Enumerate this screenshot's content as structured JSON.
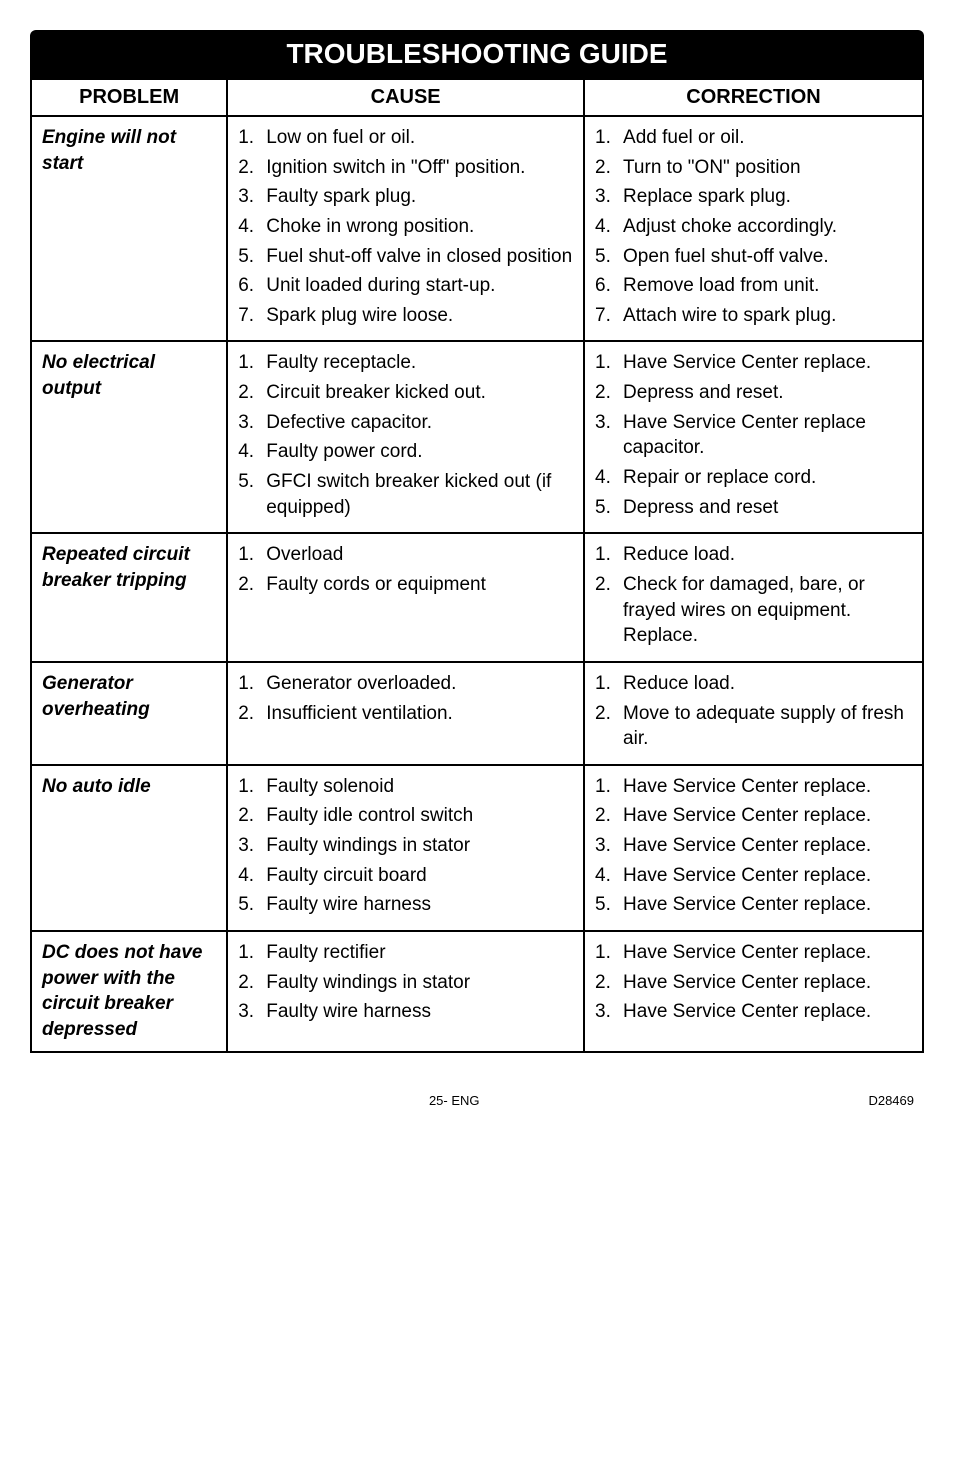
{
  "title": "TROUBLESHOOTING GUIDE",
  "headers": {
    "problem": "PROBLEM",
    "cause": "CAUSE",
    "correction": "CORRECTION"
  },
  "col_widths": {
    "problem": "22%",
    "cause": "40%",
    "correction": "38%"
  },
  "rows": [
    {
      "problem": "Engine will not start",
      "causes": [
        {
          "n": "1.",
          "t": "Low on fuel or oil."
        },
        {
          "n": "2.",
          "t": "Ignition switch in \"Off\" position."
        },
        {
          "n": "3.",
          "t": "Faulty spark plug."
        },
        {
          "n": "4.",
          "t": "Choke in wrong position."
        },
        {
          "n": "5.",
          "t": "Fuel shut-off valve in closed position"
        },
        {
          "n": "6.",
          "t": "Unit loaded during start-up."
        },
        {
          "n": "7.",
          "t": "Spark plug wire loose."
        }
      ],
      "corrections": [
        {
          "n": "1.",
          "t": "Add fuel or oil."
        },
        {
          "n": "2.",
          "t": "Turn to \"ON\" position"
        },
        {
          "n": "3.",
          "t": "Replace spark plug."
        },
        {
          "n": "4.",
          "t": "Adjust choke accordingly."
        },
        {
          "n": "5.",
          "t": "Open fuel shut-off valve."
        },
        {
          "n": "6.",
          "t": "Remove load from unit."
        },
        {
          "n": "7.",
          "t": "Attach wire to spark plug."
        }
      ]
    },
    {
      "problem": "No electrical output",
      "causes": [
        {
          "n": "1.",
          "t": "Faulty receptacle."
        },
        {
          "n": "2.",
          "t": "Circuit breaker kicked out."
        },
        {
          "n": "3.",
          "t": "Defective capacitor."
        },
        {
          "n": "4.",
          "t": "Faulty power cord."
        },
        {
          "n": "5.",
          "t": "GFCI switch breaker kicked out (if equipped)"
        }
      ],
      "corrections": [
        {
          "n": "1.",
          "t": "Have Service Center replace."
        },
        {
          "n": "2.",
          "t": "Depress and reset."
        },
        {
          "n": "3.",
          "t": "Have Service Center replace capacitor."
        },
        {
          "n": "4.",
          "t": "Repair or replace cord."
        },
        {
          "n": "5.",
          "t": "Depress and reset"
        }
      ]
    },
    {
      "problem": "Repeated circuit breaker tripping",
      "causes": [
        {
          "n": "1.",
          "t": "Overload"
        },
        {
          "n": "2.",
          "t": "Faulty cords or equipment"
        }
      ],
      "corrections": [
        {
          "n": "1.",
          "t": "Reduce load."
        },
        {
          "n": "2.",
          "t": "Check for damaged, bare, or frayed wires on equipment. Replace."
        }
      ]
    },
    {
      "problem": "Generator overheating",
      "causes": [
        {
          "n": "1.",
          "t": "Generator overloaded."
        },
        {
          "n": "2.",
          "t": "Insufficient ventilation."
        }
      ],
      "corrections": [
        {
          "n": "1.",
          "t": "Reduce load."
        },
        {
          "n": "2.",
          "t": "Move to adequate supply of fresh air."
        }
      ]
    },
    {
      "problem": "No auto idle",
      "causes": [
        {
          "n": "1.",
          "t": "Faulty solenoid"
        },
        {
          "n": "2.",
          "t": "Faulty idle control switch"
        },
        {
          "n": "3.",
          "t": "Faulty windings in stator"
        },
        {
          "n": "4.",
          "t": "Faulty circuit board"
        },
        {
          "n": "5.",
          "t": "Faulty wire harness"
        }
      ],
      "corrections": [
        {
          "n": "1.",
          "t": "Have Service Center replace."
        },
        {
          "n": "2.",
          "t": "Have Service Center replace."
        },
        {
          "n": "3.",
          "t": "Have Service Center replace."
        },
        {
          "n": "4.",
          "t": "Have Service Center replace."
        },
        {
          "n": "5.",
          "t": "Have Service Center replace."
        }
      ]
    },
    {
      "problem": "DC does not have power with the circuit breaker depressed",
      "causes": [
        {
          "n": "1.",
          "t": "Faulty rectifier"
        },
        {
          "n": "2.",
          "t": "Faulty windings in stator"
        },
        {
          "n": "3.",
          "t": "Faulty wire harness"
        }
      ],
      "corrections": [
        {
          "n": "1.",
          "t": "Have Service Center replace."
        },
        {
          "n": "2.",
          "t": "Have Service Center replace."
        },
        {
          "n": "3.",
          "t": "Have Service Center replace."
        }
      ]
    }
  ],
  "footer": {
    "page": "25- ENG",
    "doc": "D28469"
  }
}
